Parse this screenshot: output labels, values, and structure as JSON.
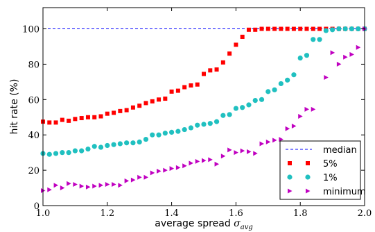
{
  "chart_data": {
    "type": "scatter",
    "xlabel": "average spread",
    "xlabel_symbol": "σ",
    "xlabel_subscript": "avg",
    "ylabel": "hit rate (%)",
    "xlim": [
      1.0,
      2.0
    ],
    "ylim": [
      0,
      112
    ],
    "xticks": [
      1.0,
      1.2,
      1.4,
      1.6,
      1.8,
      2.0
    ],
    "xtick_labels": [
      "1.0",
      "1.2",
      "1.4",
      "1.6",
      "1.8",
      "2.0"
    ],
    "yticks": [
      0,
      20,
      40,
      60,
      80,
      100
    ],
    "ytick_labels": [
      "0",
      "20",
      "40",
      "60",
      "80",
      "100"
    ],
    "grid": false,
    "legend_position": "bottom-right",
    "series": [
      {
        "name": "median",
        "kind": "line",
        "color": "#0000ff",
        "x": [
          1.0,
          2.0
        ],
        "y": [
          100,
          100
        ]
      },
      {
        "name": "5%",
        "kind": "square",
        "color": "#ff0000",
        "x": [
          1.0,
          1.02,
          1.04,
          1.06,
          1.08,
          1.1,
          1.12,
          1.14,
          1.16,
          1.18,
          1.2,
          1.22,
          1.24,
          1.26,
          1.28,
          1.3,
          1.32,
          1.34,
          1.36,
          1.38,
          1.4,
          1.42,
          1.44,
          1.46,
          1.48,
          1.5,
          1.52,
          1.54,
          1.56,
          1.58,
          1.6,
          1.62,
          1.64,
          1.66,
          1.68,
          1.7,
          1.72,
          1.74,
          1.76,
          1.78,
          1.8,
          1.82,
          1.84,
          1.86,
          1.88,
          1.9,
          1.92,
          1.94,
          1.96,
          1.98,
          2.0
        ],
        "y": [
          47.5,
          47,
          47,
          48.5,
          48,
          49,
          49.5,
          50,
          50,
          50.5,
          52,
          52.5,
          53.5,
          54,
          55.5,
          56.5,
          58,
          59,
          60,
          60.5,
          64.5,
          65,
          67,
          68,
          68.5,
          74.5,
          76.5,
          77,
          81,
          86,
          91,
          95.5,
          99.5,
          99.5,
          100,
          100,
          100,
          100,
          100,
          100,
          100,
          100,
          100,
          100,
          100,
          100,
          100,
          100,
          100,
          100,
          100
        ]
      },
      {
        "name": "1%",
        "kind": "circle",
        "color": "#20c0c0",
        "x": [
          1.0,
          1.02,
          1.04,
          1.06,
          1.08,
          1.1,
          1.12,
          1.14,
          1.16,
          1.18,
          1.2,
          1.22,
          1.24,
          1.26,
          1.28,
          1.3,
          1.32,
          1.34,
          1.36,
          1.38,
          1.4,
          1.42,
          1.44,
          1.46,
          1.48,
          1.5,
          1.52,
          1.54,
          1.56,
          1.58,
          1.6,
          1.62,
          1.64,
          1.66,
          1.68,
          1.7,
          1.72,
          1.74,
          1.76,
          1.78,
          1.8,
          1.82,
          1.84,
          1.86,
          1.88,
          1.9,
          1.92,
          1.94,
          1.96,
          1.98,
          2.0
        ],
        "y": [
          29.5,
          29,
          29.5,
          30,
          30,
          31,
          31,
          32,
          33.5,
          33,
          34,
          34.5,
          35,
          35.5,
          35.5,
          36,
          37.5,
          40,
          40,
          41,
          41.5,
          42,
          43,
          44,
          45.5,
          46,
          46.5,
          47.5,
          51,
          51.5,
          55,
          55.5,
          57,
          59.5,
          60,
          64.5,
          65.5,
          69,
          71,
          74,
          83.5,
          85,
          94,
          94,
          99,
          99.5,
          100,
          100,
          100,
          100,
          100
        ]
      },
      {
        "name": "minimum",
        "kind": "triangle-right",
        "color": "#c000c0",
        "x": [
          1.0,
          1.02,
          1.04,
          1.06,
          1.08,
          1.1,
          1.12,
          1.14,
          1.16,
          1.18,
          1.2,
          1.22,
          1.24,
          1.26,
          1.28,
          1.3,
          1.32,
          1.34,
          1.36,
          1.38,
          1.4,
          1.42,
          1.44,
          1.46,
          1.48,
          1.5,
          1.52,
          1.54,
          1.56,
          1.58,
          1.6,
          1.62,
          1.64,
          1.66,
          1.68,
          1.7,
          1.72,
          1.74,
          1.76,
          1.78,
          1.8,
          1.82,
          1.84,
          1.86,
          1.88,
          1.9,
          1.92,
          1.94,
          1.96,
          1.98,
          2.0
        ],
        "y": [
          8.5,
          9,
          11.5,
          10,
          12.5,
          12,
          11,
          10.5,
          11,
          11.5,
          12,
          12,
          11.5,
          14,
          14.5,
          16,
          16,
          18.5,
          19.5,
          20,
          21,
          21.5,
          22.5,
          24,
          25,
          25.5,
          26,
          23.5,
          28,
          31.5,
          30,
          31,
          30.5,
          29.5,
          35,
          36,
          37,
          37.5,
          43.5,
          45,
          50.5,
          54.5,
          54.5,
          null,
          72.5,
          86.5,
          80,
          84,
          85.5,
          89.5,
          100
        ]
      }
    ]
  }
}
